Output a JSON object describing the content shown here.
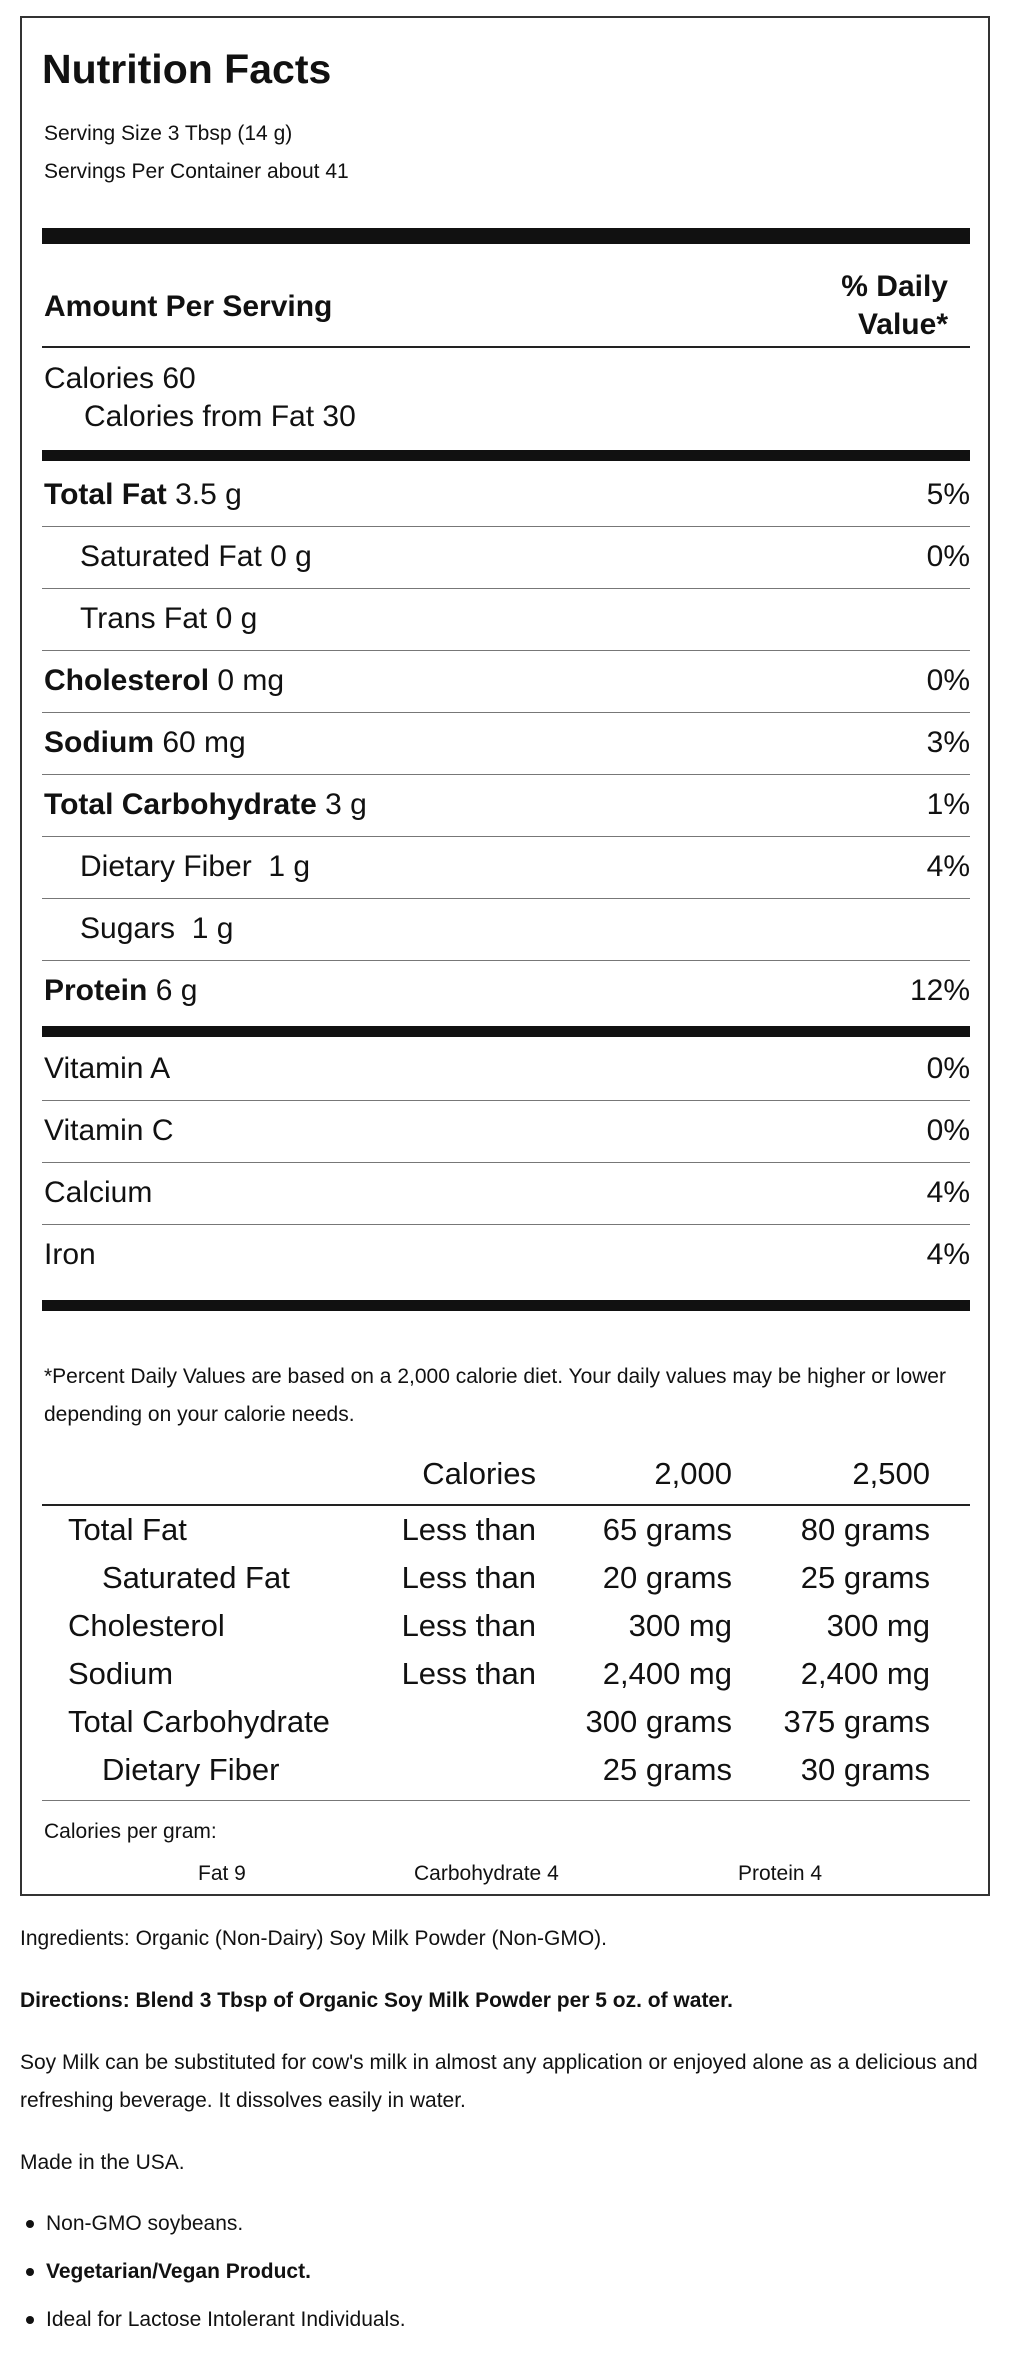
{
  "label": {
    "title": "Nutrition Facts",
    "serving_size": "Serving Size 3 Tbsp (14 g)",
    "servings_per_container": "Servings Per Container about 41",
    "amount_per_serving": "Amount Per Serving",
    "daily_value_line1": "% Daily",
    "daily_value_line2": "Value*",
    "calories": "Calories 60",
    "calories_from_fat": "Calories from Fat 30",
    "nutrients": [
      {
        "name": "Total Fat",
        "amount": "3.5 g",
        "pct": "5%",
        "bold": true
      },
      {
        "name": "Saturated Fat 0 g",
        "amount": "",
        "pct": "0%",
        "bold": false
      },
      {
        "name": "Trans Fat 0 g",
        "amount": "",
        "pct": "",
        "bold": false
      },
      {
        "name": "Cholesterol",
        "amount": "0 mg",
        "pct": "0%",
        "bold": true
      },
      {
        "name": "Sodium",
        "amount": "60 mg",
        "pct": "3%",
        "bold": true
      },
      {
        "name": "Total Carbohydrate",
        "amount": "3 g",
        "pct": "1%",
        "bold": true
      },
      {
        "name": "Dietary Fiber",
        "amount": "1 g",
        "pct": "4%",
        "bold": false
      },
      {
        "name": "Sugars",
        "amount": "1 g",
        "pct": "",
        "bold": false
      },
      {
        "name": "Protein",
        "amount": "6 g",
        "pct": "12%",
        "bold": true
      }
    ],
    "vitamins": [
      {
        "name": "Vitamin A",
        "pct": "0%"
      },
      {
        "name": "Vitamin C",
        "pct": "0%"
      },
      {
        "name": "Calcium",
        "pct": "4%"
      },
      {
        "name": "Iron",
        "pct": "4%"
      }
    ],
    "footnote": "*Percent Daily Values are based on a 2,000 calorie diet. Your daily values may be higher or lower depending on your calorie needs.",
    "table": {
      "header": [
        "Calories",
        "2,000",
        "2,500"
      ],
      "rows": [
        [
          "Total Fat",
          "Less than",
          "65 grams",
          "80 grams"
        ],
        [
          "Saturated Fat",
          "Less than",
          "20 grams",
          "25 grams"
        ],
        [
          "Cholesterol",
          "Less than",
          "300 mg",
          "300 mg"
        ],
        [
          "Sodium",
          "Less than",
          "2,400 mg",
          "2,400 mg"
        ],
        [
          "Total Carbohydrate",
          "",
          "300 grams",
          "375 grams"
        ],
        [
          "Dietary Fiber",
          "",
          "25 grams",
          "30 grams"
        ]
      ]
    },
    "calories_per_gram": "Calories per gram:",
    "cpg_items": [
      "Fat 9",
      "Carbohydrate 4",
      "Protein 4"
    ]
  },
  "description": {
    "ingredients": "Ingredients: Organic (Non-Dairy) Soy Milk Powder (Non-GMO).",
    "directions": "Directions: Blend 3 Tbsp of Organic Soy Milk Powder per 5 oz. of water.",
    "about": "Soy Milk can be substituted for cow's milk in almost any application or enjoyed alone as a delicious and refreshing beverage. It dissolves easily in water.",
    "origin": "Made in the USA.",
    "bullets": [
      "Non-GMO soybeans.",
      "Vegetarian/Vegan Product.",
      "Ideal for Lactose Intolerant Individuals."
    ]
  }
}
